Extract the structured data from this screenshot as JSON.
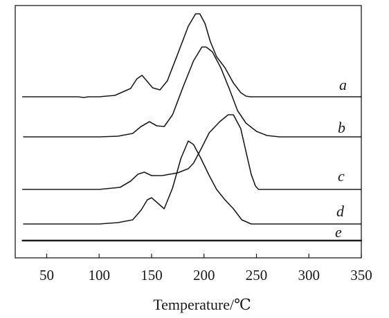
{
  "chart_data": {
    "type": "line",
    "title": "",
    "xlabel": "Temperature/℃",
    "ylabel": "",
    "xlim": [
      20,
      350
    ],
    "xticks": [
      50,
      100,
      150,
      200,
      250,
      300,
      350
    ],
    "y_axis_ticks": false,
    "grid": false,
    "legend": "none",
    "series": [
      {
        "name": "a",
        "x": [
          27,
          80,
          85,
          90,
          100,
          115,
          130,
          136,
          141,
          146,
          151,
          158,
          165,
          175,
          185,
          192,
          196,
          201,
          206,
          212,
          220,
          228,
          235,
          240,
          244,
          260,
          300,
          350
        ],
        "y": [
          0.0,
          0.0,
          -0.01,
          0.0,
          0.0,
          0.02,
          0.12,
          0.26,
          0.31,
          0.22,
          0.13,
          0.1,
          0.23,
          0.62,
          1.02,
          1.2,
          1.2,
          1.06,
          0.8,
          0.58,
          0.42,
          0.2,
          0.06,
          0.01,
          0.0,
          0.0,
          0.0,
          0.0
        ]
      },
      {
        "name": "b",
        "x": [
          28,
          100,
          118,
          132,
          140,
          148,
          155,
          162,
          170,
          180,
          190,
          198,
          202,
          208,
          216,
          224,
          232,
          240,
          250,
          260,
          272,
          350
        ],
        "y": [
          0.0,
          0.0,
          0.01,
          0.05,
          0.15,
          0.22,
          0.16,
          0.15,
          0.32,
          0.72,
          1.1,
          1.3,
          1.3,
          1.23,
          1.0,
          0.7,
          0.38,
          0.2,
          0.08,
          0.02,
          0.0,
          0.0
        ]
      },
      {
        "name": "c",
        "x": [
          27,
          80,
          100,
          120,
          130,
          137,
          143,
          150,
          160,
          175,
          185,
          190,
          197,
          205,
          215,
          223,
          228,
          235,
          240,
          245,
          249,
          252,
          260,
          300,
          350
        ],
        "y": [
          0.0,
          0.0,
          0.0,
          0.03,
          0.12,
          0.22,
          0.25,
          0.2,
          0.2,
          0.24,
          0.3,
          0.38,
          0.58,
          0.82,
          0.98,
          1.08,
          1.08,
          0.88,
          0.55,
          0.22,
          0.05,
          0.0,
          0.0,
          0.0,
          0.0
        ]
      },
      {
        "name": "d",
        "x": [
          28,
          100,
          118,
          132,
          140,
          146,
          150,
          156,
          162,
          170,
          178,
          185,
          190,
          197,
          205,
          212,
          220,
          228,
          236,
          245,
          350
        ],
        "y": [
          0.0,
          0.0,
          0.02,
          0.06,
          0.2,
          0.35,
          0.38,
          0.3,
          0.22,
          0.52,
          0.95,
          1.2,
          1.15,
          0.95,
          0.7,
          0.5,
          0.35,
          0.22,
          0.06,
          0.0,
          0.0
        ]
      },
      {
        "name": "e",
        "x": [
          27,
          350
        ],
        "y": [
          0.0,
          0.0
        ]
      }
    ]
  }
}
